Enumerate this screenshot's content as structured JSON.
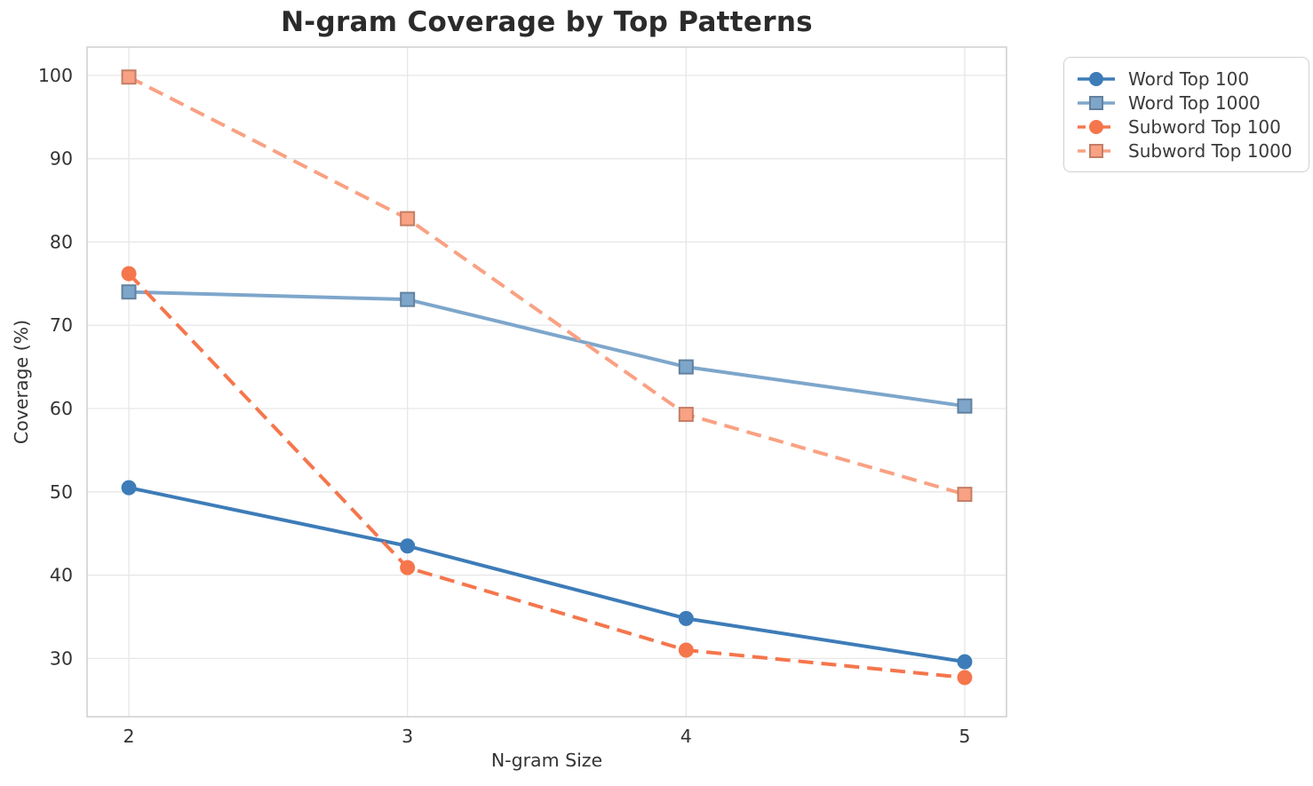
{
  "chart_data": {
    "type": "line",
    "title": "N-gram Coverage by Top Patterns",
    "xlabel": "N-gram Size",
    "ylabel": "Coverage (%)",
    "x": [
      2,
      3,
      4,
      5
    ],
    "xtick_labels": [
      "2",
      "3",
      "4",
      "5"
    ],
    "yticks": [
      30,
      40,
      50,
      60,
      70,
      80,
      90,
      100
    ],
    "ytick_labels": [
      "30",
      "40",
      "50",
      "60",
      "70",
      "80",
      "90",
      "100"
    ],
    "xlim": [
      1.85,
      5.15
    ],
    "ylim": [
      23,
      103.4
    ],
    "grid": true,
    "legend_position": "outside-upper-right",
    "series": [
      {
        "name": "Word Top 100",
        "values": [
          50.5,
          43.5,
          34.8,
          29.6
        ],
        "color": "#3d7cb8",
        "line_style": "solid",
        "marker": "circle"
      },
      {
        "name": "Word Top 1000",
        "values": [
          74.0,
          73.1,
          65.0,
          60.3
        ],
        "color": "#7ea6cb",
        "line_style": "solid",
        "marker": "square"
      },
      {
        "name": "Subword Top 100",
        "values": [
          76.2,
          40.9,
          31.0,
          27.7
        ],
        "color": "#f5764c",
        "line_style": "dashed",
        "marker": "circle"
      },
      {
        "name": "Subword Top 1000",
        "values": [
          99.8,
          82.8,
          59.3,
          49.7
        ],
        "color": "#f9a183",
        "line_style": "dashed",
        "marker": "square"
      }
    ]
  },
  "colors": {
    "background": "#ffffff",
    "grid": "#e7e7e7",
    "spine": "#d2d2d2",
    "tick_text": "#333333",
    "title_text": "#2b2b2b",
    "legend_border": "#d0d0d0"
  }
}
